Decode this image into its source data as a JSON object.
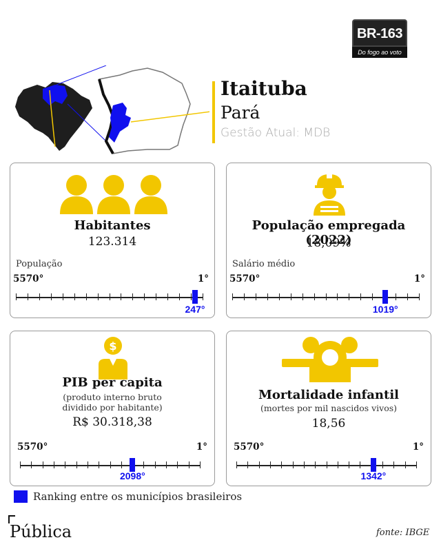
{
  "logo": {
    "title": "BR-163",
    "tagline": "Do fogo ao voto"
  },
  "header": {
    "municipality": "Itaituba",
    "state": "Pará",
    "gestao": "Gestão Atual: MDB"
  },
  "cards": [
    {
      "id": "habitantes",
      "title": "Habitantes",
      "subtitle": "",
      "value": "123.314",
      "metric_label": "População",
      "rank_low": "5570°",
      "rank_high": "1°",
      "rank": "247°",
      "rank_value": 247
    },
    {
      "id": "empregada",
      "title": "População empregada (2022)",
      "subtitle": "",
      "value": "18,09%",
      "metric_label": "Salário médio",
      "rank_low": "5570°",
      "rank_high": "1°",
      "rank": "1019°",
      "rank_value": 1019
    },
    {
      "id": "pib",
      "title": "PIB per capita",
      "subtitle": "(produto interno bruto dividido por habitante)",
      "value": "R$ 30.318,38",
      "metric_label": "",
      "rank_low": "5570°",
      "rank_high": "1°",
      "rank": "2098°",
      "rank_value": 2098
    },
    {
      "id": "mortalidade",
      "title": "Mortalidade infantil",
      "subtitle": "(mortes por mil nascidos vivos)",
      "value": "18,56",
      "metric_label": "",
      "rank_low": "5570°",
      "rank_high": "1°",
      "rank": "1342°",
      "rank_value": 1342
    }
  ],
  "rank_total": 5570,
  "legend": {
    "text": "Ranking entre os municípios brasileiros"
  },
  "footer": {
    "brand": "Pública",
    "source": "fonte: IBGE"
  },
  "colors": {
    "accent": "#f2c600",
    "rank": "#1010ee",
    "border": "#9a9a9a"
  }
}
